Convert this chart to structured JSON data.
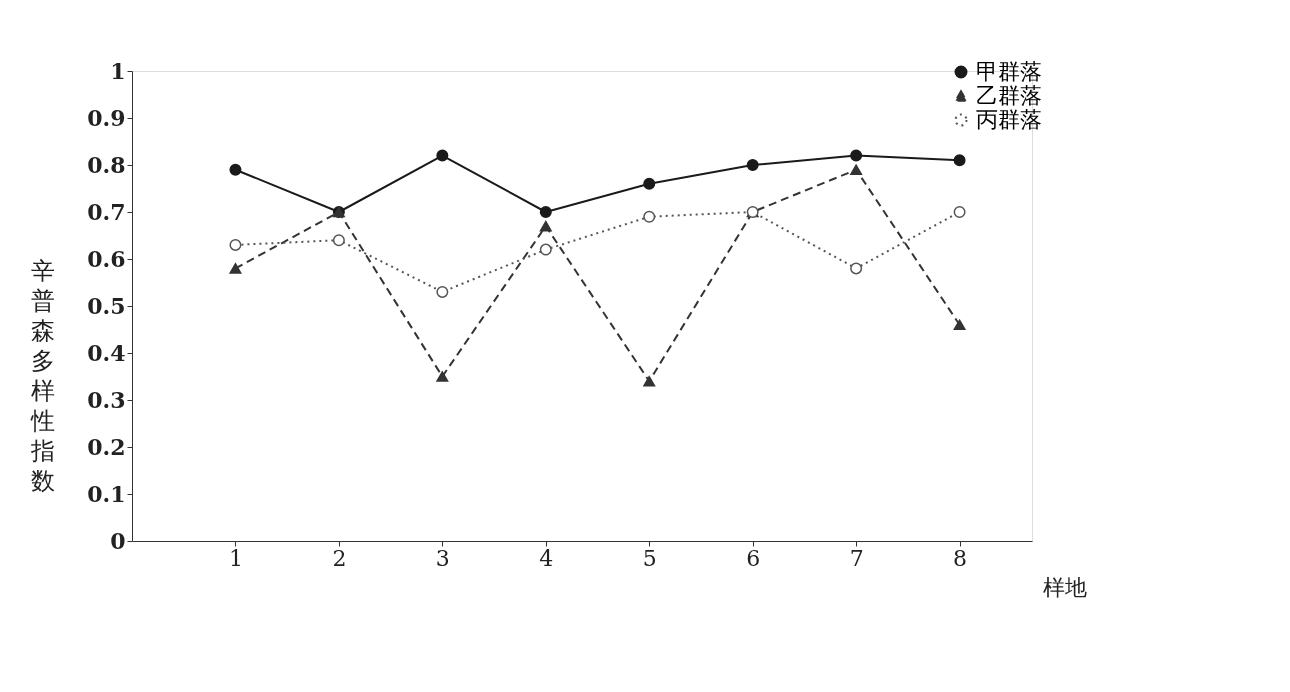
{
  "chart_data": {
    "type": "line",
    "xlabel": "样地",
    "ylabel": "辛普森多样性指数",
    "x": [
      1,
      2,
      3,
      4,
      5,
      6,
      7,
      8
    ],
    "series": [
      {
        "name": "甲群落",
        "color": "#1a1a1a",
        "marker": "circle",
        "line_style": "solid",
        "values": [
          0.79,
          0.7,
          0.82,
          0.7,
          0.76,
          0.8,
          0.82,
          0.81
        ]
      },
      {
        "name": "乙群落",
        "color": "#333333",
        "marker": "triangle",
        "line_style": "dashed",
        "values": [
          0.58,
          0.7,
          0.35,
          0.67,
          0.34,
          0.7,
          0.79,
          0.46
        ]
      },
      {
        "name": "丙群落",
        "color": "#555555",
        "marker": "circle",
        "line_style": "dotted",
        "values": [
          0.63,
          0.64,
          0.53,
          0.62,
          0.69,
          0.7,
          0.58,
          0.7
        ]
      }
    ],
    "xlim": [
      0,
      8.7
    ],
    "xticks": [
      1,
      2,
      3,
      4,
      5,
      6,
      7,
      8
    ],
    "ylim": [
      0,
      1
    ],
    "yticks": [
      0,
      0.1,
      0.2,
      0.3,
      0.4,
      0.5,
      0.6,
      0.7,
      0.8,
      0.9,
      1
    ],
    "grid": false,
    "legend": "top right"
  }
}
